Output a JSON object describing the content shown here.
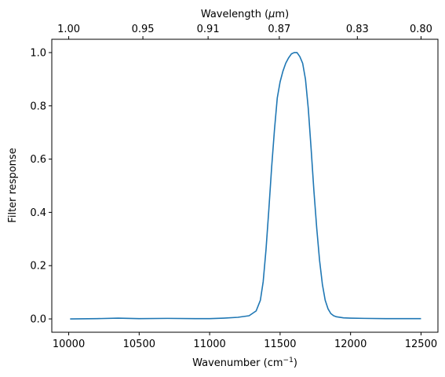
{
  "chart_data": {
    "type": "line",
    "xlabel": "Wavenumber (cm",
    "xlabel_sup": "−1",
    "xlabel_end": ")",
    "ylabel": "Filter response",
    "x2label_pre": "Wavelength (",
    "x2label_mu": "μ",
    "x2label_post": "m)",
    "xlim": [
      9880,
      12620
    ],
    "ylim": [
      -0.05,
      1.05
    ],
    "grid": false,
    "x_ticks": [
      10000,
      10500,
      11000,
      11500,
      12000,
      12500
    ],
    "y_ticks": [
      0.0,
      0.2,
      0.4,
      0.6,
      0.8,
      1.0
    ],
    "y_tick_labels": [
      "0.0",
      "0.2",
      "0.4",
      "0.6",
      "0.8",
      "1.0"
    ],
    "x2_ticks": [
      1.0,
      0.95,
      0.91,
      0.87,
      0.83,
      0.8
    ],
    "x2_tick_labels": [
      "1.00",
      "0.95",
      "0.91",
      "0.87",
      "0.83",
      "0.80"
    ],
    "line_color": "#1f77b4",
    "series": [
      {
        "x": [
          10010,
          10200,
          10350,
          10500,
          10700,
          10900,
          11000,
          11100,
          11200,
          11280,
          11330,
          11360,
          11380,
          11400,
          11420,
          11440,
          11460,
          11480,
          11500,
          11520,
          11540,
          11560,
          11580,
          11600,
          11620,
          11640,
          11660,
          11680,
          11700,
          11720,
          11740,
          11760,
          11780,
          11800,
          11820,
          11840,
          11860,
          11880,
          11900,
          11950,
          12000,
          12100,
          12250,
          12400,
          12500
        ],
        "y": [
          0.0,
          0.001,
          0.003,
          0.001,
          0.002,
          0.001,
          0.001,
          0.003,
          0.006,
          0.012,
          0.03,
          0.07,
          0.14,
          0.26,
          0.41,
          0.57,
          0.71,
          0.83,
          0.89,
          0.93,
          0.96,
          0.98,
          0.995,
          1.0,
          1.0,
          0.985,
          0.96,
          0.9,
          0.79,
          0.64,
          0.48,
          0.34,
          0.22,
          0.13,
          0.07,
          0.038,
          0.02,
          0.012,
          0.008,
          0.004,
          0.003,
          0.002,
          0.001,
          0.001,
          0.001
        ]
      }
    ]
  }
}
